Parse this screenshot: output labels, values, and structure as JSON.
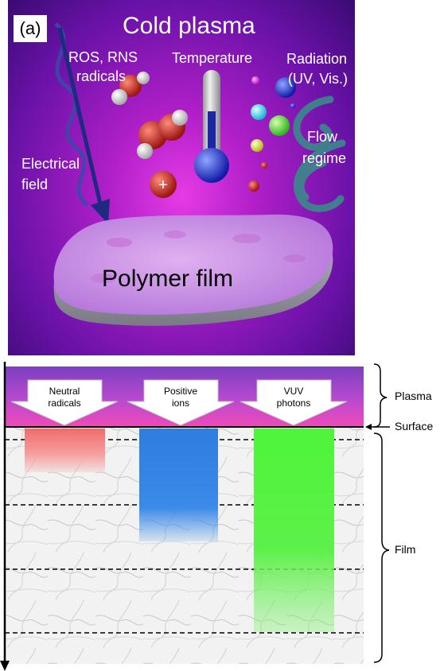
{
  "panel_a": {
    "label": "(a)",
    "title": "Cold plasma",
    "ros_line1": "ROS, RNS",
    "ros_line2": "radicals",
    "temperature": "Temperature",
    "radiation_line1": "Radiation",
    "radiation_line2": "(UV, Vis.)",
    "electrical_line1": "Electrical",
    "electrical_line2": "field",
    "flow_line1": "Flow",
    "flow_line2": "regime",
    "film_label": "Polymer film"
  },
  "panel_b": {
    "arrows": [
      {
        "line1": "Neutral",
        "line2": "radicals"
      },
      {
        "line1": "Positive",
        "line2": "ions"
      },
      {
        "line1": "VUV",
        "line2": "photons"
      }
    ],
    "plasma_label": "Plasma",
    "surface_label": "Surface",
    "film_label": "Film"
  },
  "colors": {
    "plasma_top": "#8e44c8",
    "plasma_bottom": "#e040c8",
    "neutral_bar": "#f26b6b",
    "ion_bar": "#2f7de0",
    "photon_bar": "#4df53a"
  }
}
